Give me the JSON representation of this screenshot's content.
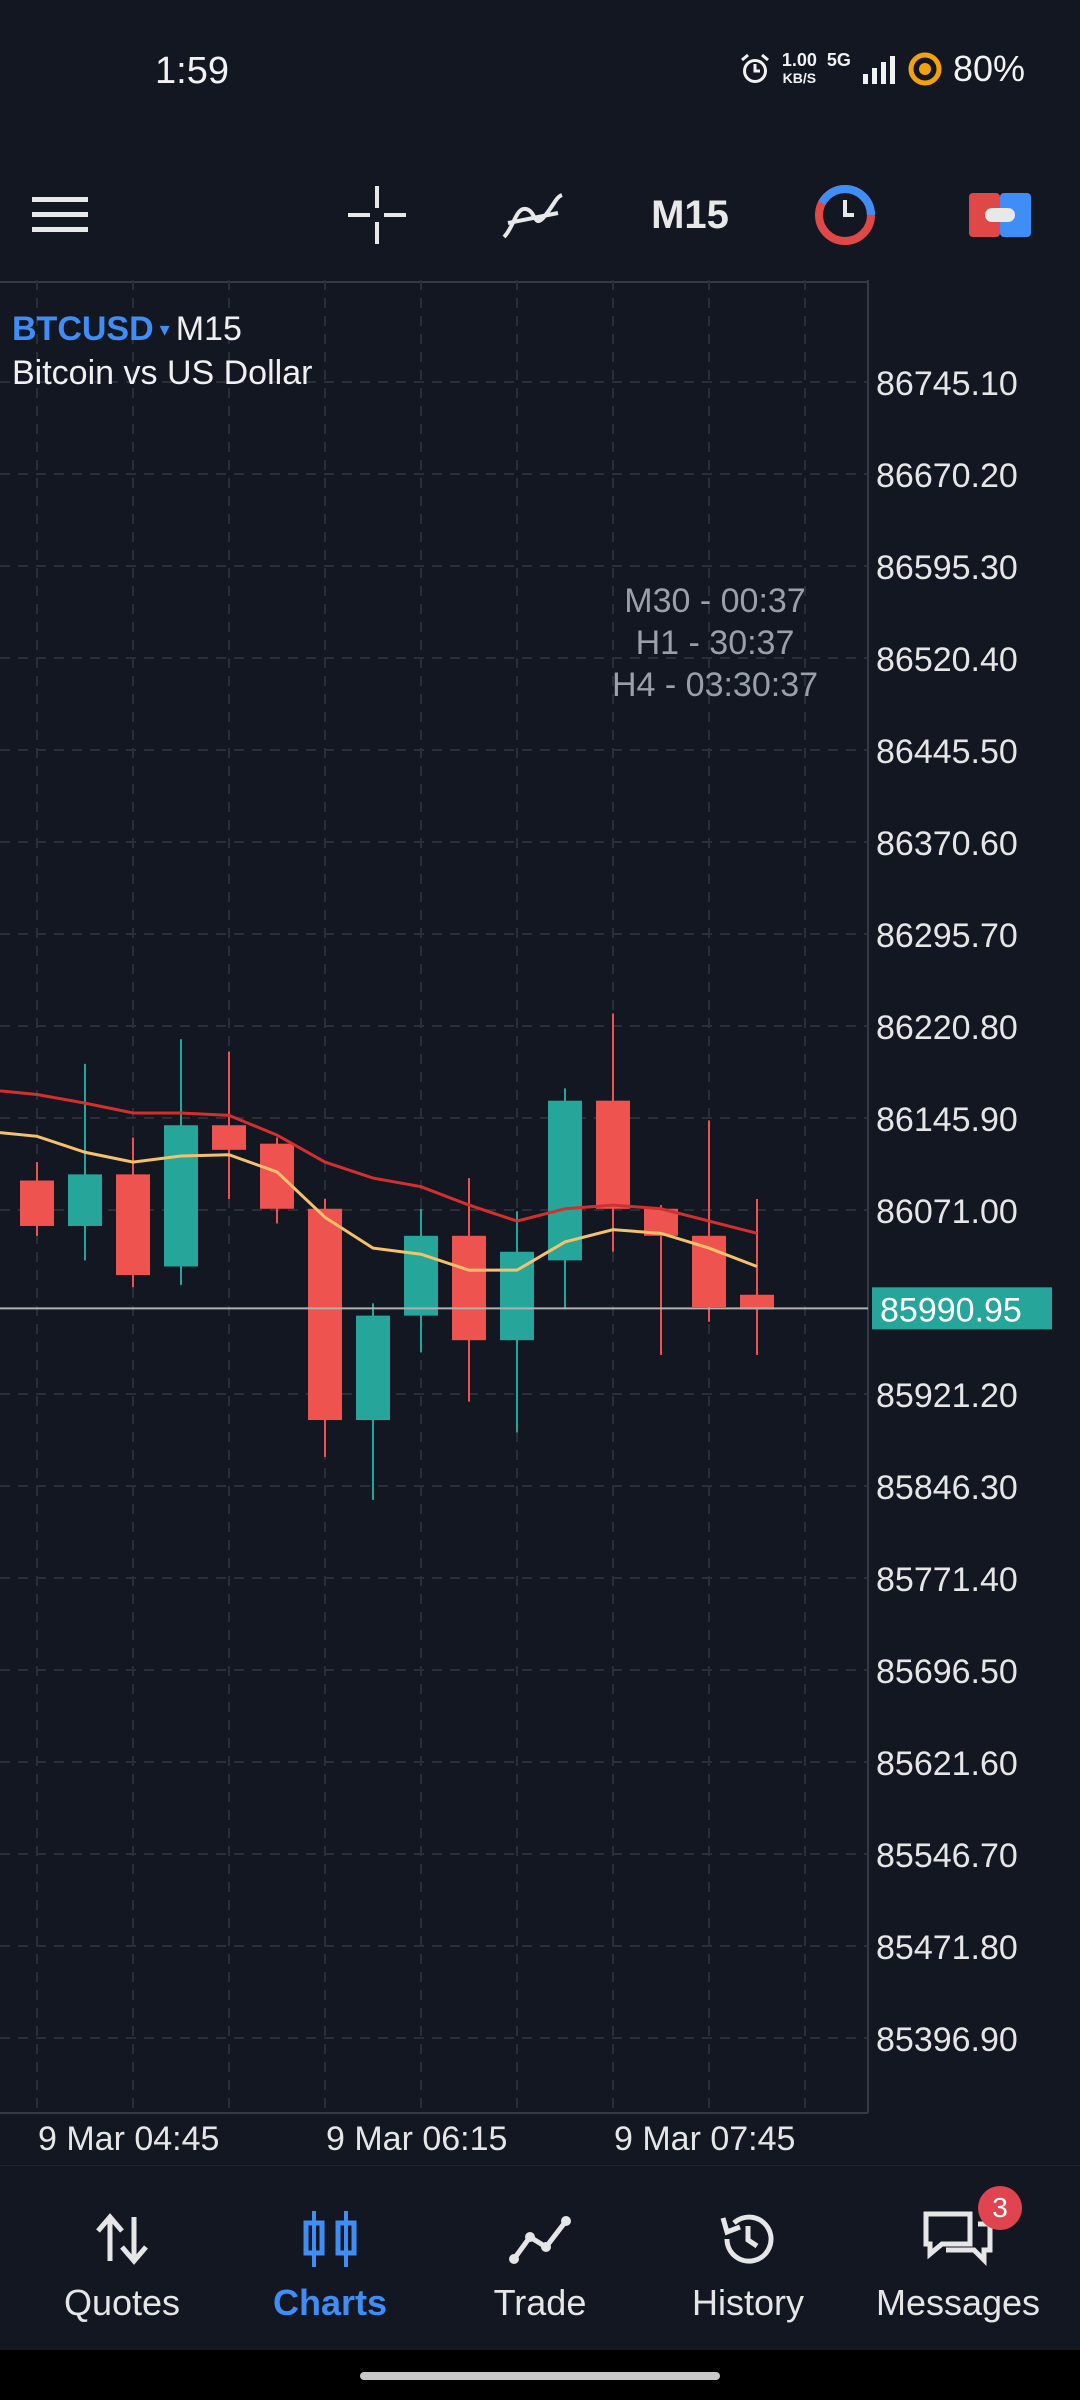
{
  "status_bar": {
    "time": "1:59",
    "net_speed_value": "1.00",
    "net_speed_unit": "KB/S",
    "network": "5G",
    "battery": "80%"
  },
  "toolbar": {
    "timeframe": "M15",
    "icons": [
      "menu-icon",
      "crosshair-icon",
      "indicators-icon",
      "timeframe",
      "clock-icon",
      "trade-toggle-icon"
    ]
  },
  "chart": {
    "symbol": "BTCUSD",
    "symbol_caret": "▾",
    "timeframe": "M15",
    "description": "Bitcoin vs US Dollar",
    "timers": [
      "M30 - 00:37",
      "H1 - 30:37",
      "H4 - 03:30:37"
    ],
    "current_price_label": "85990.95",
    "colors": {
      "bull": "#26a69a",
      "bear": "#ef5350",
      "ma_fast": "#f5c26b",
      "ma_slow": "#d32f2f",
      "grid": "#2a2e39",
      "bid_line": "#b0b0b0",
      "price_label_bg": "#26a69a"
    }
  },
  "chart_data": {
    "type": "candlestick",
    "symbol": "BTCUSD",
    "timeframe": "M15",
    "y_tick_labels": [
      "86745.10",
      "86670.20",
      "86595.30",
      "86520.40",
      "86445.50",
      "86370.60",
      "86295.70",
      "86220.80",
      "86145.90",
      "86071.00",
      "85921.20",
      "85846.30",
      "85771.40",
      "85696.50",
      "85621.60",
      "85546.70",
      "85471.80",
      "85396.90"
    ],
    "x_tick_labels": [
      "9 Mar 04:45",
      "9 Mar 06:15",
      "9 Mar 07:45"
    ],
    "ylim": [
      85350,
      86770
    ],
    "last_price": 85990.95,
    "candles": [
      {
        "o": 86095,
        "c": 86058,
        "h": 86110,
        "l": 86050
      },
      {
        "o": 86058,
        "c": 86100,
        "h": 86190,
        "l": 86030
      },
      {
        "o": 86100,
        "c": 86018,
        "h": 86130,
        "l": 86008
      },
      {
        "o": 86025,
        "c": 86140,
        "h": 86210,
        "l": 86010
      },
      {
        "o": 86140,
        "c": 86120,
        "h": 86200,
        "l": 86080
      },
      {
        "o": 86125,
        "c": 86072,
        "h": 86130,
        "l": 86060
      },
      {
        "o": 86072,
        "c": 85900,
        "h": 86080,
        "l": 85870
      },
      {
        "o": 85900,
        "c": 85985,
        "h": 85995,
        "l": 85835
      },
      {
        "o": 85985,
        "c": 86050,
        "h": 86072,
        "l": 85955
      },
      {
        "o": 86050,
        "c": 85965,
        "h": 86097,
        "l": 85915
      },
      {
        "o": 85965,
        "c": 86037,
        "h": 86070,
        "l": 85890
      },
      {
        "o": 86030,
        "c": 86160,
        "h": 86170,
        "l": 85990
      },
      {
        "o": 86160,
        "c": 86072,
        "h": 86231,
        "l": 86037
      },
      {
        "o": 86072,
        "c": 86050,
        "h": 86075,
        "l": 85953
      },
      {
        "o": 86050,
        "c": 85992,
        "h": 86144,
        "l": 85980
      },
      {
        "o": 86002,
        "c": 85990,
        "h": 86080,
        "l": 85953
      }
    ],
    "ma_fast": [
      86131,
      86118,
      86110,
      86115,
      86116,
      86102,
      86065,
      86040,
      86035,
      86022,
      86022,
      86045,
      86055,
      86052,
      86040,
      86025
    ],
    "ma_slow": [
      86165,
      86158,
      86150,
      86150,
      86148,
      86132,
      86110,
      86097,
      86090,
      86075,
      86062,
      86072,
      86075,
      86072,
      86062,
      86052
    ]
  },
  "bottom_nav": {
    "items": [
      {
        "label": "Quotes",
        "icon": "quotes-icon",
        "active": false
      },
      {
        "label": "Charts",
        "icon": "charts-icon",
        "active": true
      },
      {
        "label": "Trade",
        "icon": "trade-icon",
        "active": false
      },
      {
        "label": "History",
        "icon": "history-icon",
        "active": false
      },
      {
        "label": "Messages",
        "icon": "messages-icon",
        "active": false
      }
    ],
    "messages_badge": "3"
  }
}
